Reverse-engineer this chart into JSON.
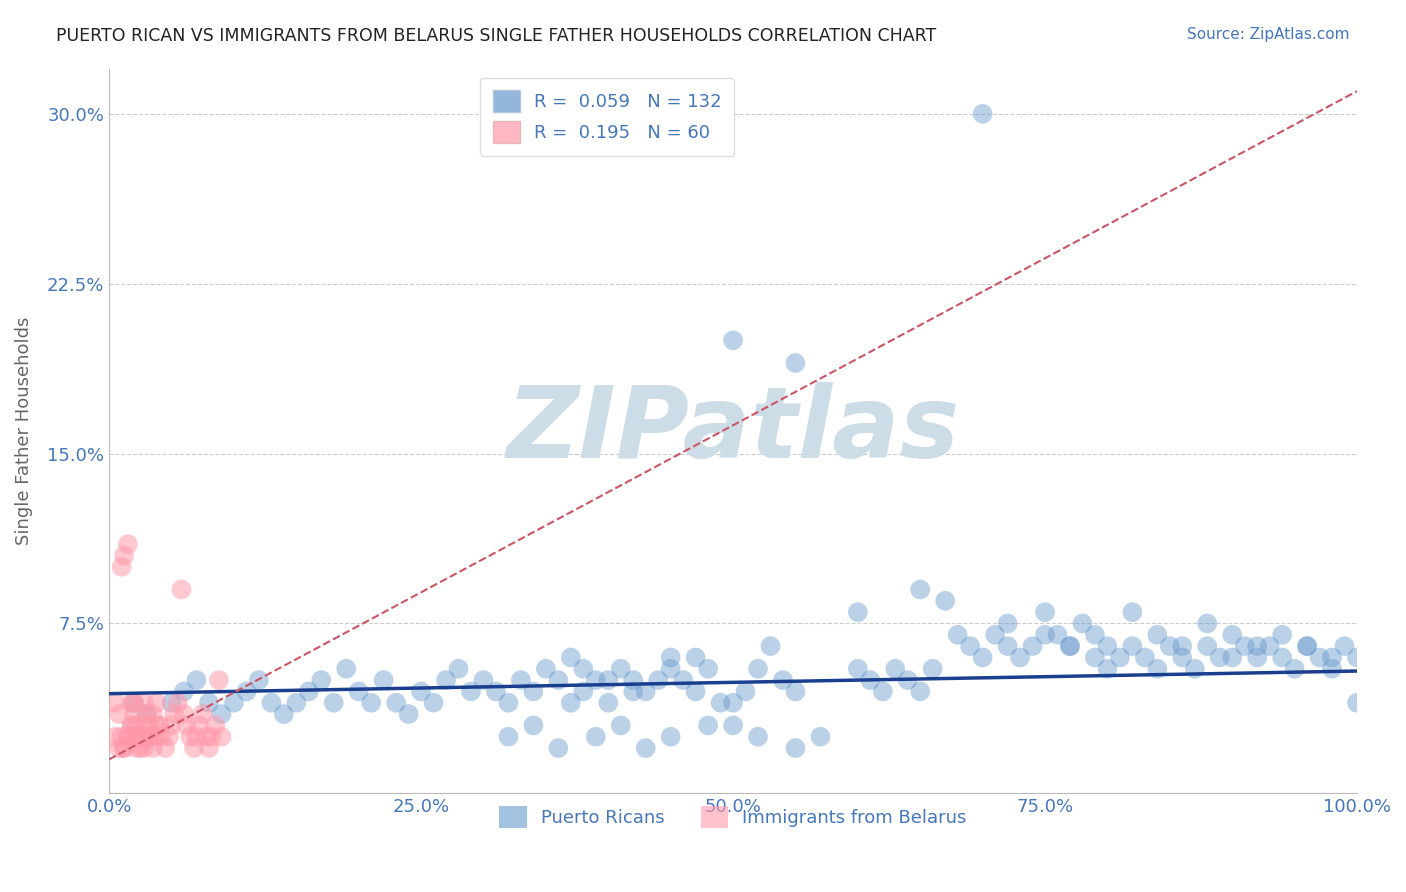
{
  "title": "PUERTO RICAN VS IMMIGRANTS FROM BELARUS SINGLE FATHER HOUSEHOLDS CORRELATION CHART",
  "source": "Source: ZipAtlas.com",
  "ylabel": "Single Father Households",
  "xlim": [
    0.0,
    1.0
  ],
  "ylim": [
    0.0,
    0.32
  ],
  "yticks": [
    0.0,
    0.075,
    0.15,
    0.225,
    0.3
  ],
  "ytick_labels": [
    "",
    "7.5%",
    "15.0%",
    "22.5%",
    "30.0%"
  ],
  "xticks": [
    0.0,
    0.25,
    0.5,
    0.75,
    1.0
  ],
  "xtick_labels": [
    "0.0%",
    "25.0%",
    "50.0%",
    "75.0%",
    "100.0%"
  ],
  "blue_R": 0.059,
  "blue_N": 132,
  "pink_R": 0.195,
  "pink_N": 60,
  "blue_color": "#6699cc",
  "pink_color": "#ff99aa",
  "blue_line_color": "#1a3f8f",
  "pink_line_color": "#cc5566",
  "watermark": "ZIPatlas",
  "watermark_color": "#ccdde8",
  "title_color": "#222222",
  "axis_color": "#4477bb",
  "grid_color": "#cccccc",
  "blue_scatter_x": [
    0.02,
    0.03,
    0.05,
    0.06,
    0.07,
    0.08,
    0.09,
    0.1,
    0.11,
    0.12,
    0.13,
    0.14,
    0.15,
    0.16,
    0.17,
    0.18,
    0.19,
    0.2,
    0.21,
    0.22,
    0.23,
    0.24,
    0.25,
    0.26,
    0.27,
    0.28,
    0.29,
    0.3,
    0.31,
    0.32,
    0.33,
    0.34,
    0.35,
    0.36,
    0.37,
    0.38,
    0.39,
    0.4,
    0.41,
    0.42,
    0.43,
    0.44,
    0.45,
    0.46,
    0.47,
    0.48,
    0.49,
    0.5,
    0.51,
    0.52,
    0.53,
    0.54,
    0.55,
    0.37,
    0.38,
    0.4,
    0.42,
    0.45,
    0.47,
    0.5,
    0.55,
    0.6,
    0.65,
    0.67,
    0.7,
    0.72,
    0.75,
    0.77,
    0.79,
    0.8,
    0.82,
    0.84,
    0.86,
    0.88,
    0.9,
    0.92,
    0.94,
    0.96,
    0.98,
    1.0,
    0.6,
    0.61,
    0.62,
    0.63,
    0.64,
    0.65,
    0.66,
    0.68,
    0.69,
    0.7,
    0.71,
    0.72,
    0.73,
    0.74,
    0.75,
    0.76,
    0.77,
    0.78,
    0.79,
    0.8,
    0.81,
    0.82,
    0.83,
    0.84,
    0.85,
    0.86,
    0.87,
    0.88,
    0.89,
    0.9,
    0.91,
    0.92,
    0.93,
    0.94,
    0.95,
    0.96,
    0.97,
    0.98,
    0.99,
    1.0,
    0.5,
    0.52,
    0.55,
    0.57,
    0.48,
    0.45,
    0.43,
    0.41,
    0.39,
    0.36,
    0.34,
    0.32
  ],
  "blue_scatter_y": [
    0.04,
    0.035,
    0.04,
    0.045,
    0.05,
    0.04,
    0.035,
    0.04,
    0.045,
    0.05,
    0.04,
    0.035,
    0.04,
    0.045,
    0.05,
    0.04,
    0.055,
    0.045,
    0.04,
    0.05,
    0.04,
    0.035,
    0.045,
    0.04,
    0.05,
    0.055,
    0.045,
    0.05,
    0.045,
    0.04,
    0.05,
    0.045,
    0.055,
    0.05,
    0.04,
    0.045,
    0.05,
    0.04,
    0.055,
    0.05,
    0.045,
    0.05,
    0.06,
    0.05,
    0.045,
    0.055,
    0.04,
    0.04,
    0.045,
    0.055,
    0.065,
    0.05,
    0.045,
    0.06,
    0.055,
    0.05,
    0.045,
    0.055,
    0.06,
    0.2,
    0.19,
    0.08,
    0.09,
    0.085,
    0.3,
    0.075,
    0.07,
    0.065,
    0.06,
    0.055,
    0.08,
    0.07,
    0.065,
    0.075,
    0.06,
    0.065,
    0.07,
    0.065,
    0.06,
    0.04,
    0.055,
    0.05,
    0.045,
    0.055,
    0.05,
    0.045,
    0.055,
    0.07,
    0.065,
    0.06,
    0.07,
    0.065,
    0.06,
    0.065,
    0.08,
    0.07,
    0.065,
    0.075,
    0.07,
    0.065,
    0.06,
    0.065,
    0.06,
    0.055,
    0.065,
    0.06,
    0.055,
    0.065,
    0.06,
    0.07,
    0.065,
    0.06,
    0.065,
    0.06,
    0.055,
    0.065,
    0.06,
    0.055,
    0.065,
    0.06,
    0.03,
    0.025,
    0.02,
    0.025,
    0.03,
    0.025,
    0.02,
    0.03,
    0.025,
    0.02,
    0.03,
    0.025
  ],
  "pink_scatter_x": [
    0.005,
    0.008,
    0.01,
    0.012,
    0.015,
    0.018,
    0.02,
    0.022,
    0.025,
    0.028,
    0.03,
    0.032,
    0.035,
    0.038,
    0.04,
    0.042,
    0.045,
    0.048,
    0.05,
    0.052,
    0.055,
    0.058,
    0.06,
    0.062,
    0.065,
    0.068,
    0.07,
    0.072,
    0.075,
    0.078,
    0.08,
    0.082,
    0.085,
    0.088,
    0.09,
    0.012,
    0.015,
    0.018,
    0.02,
    0.022,
    0.025,
    0.028,
    0.03,
    0.032,
    0.035,
    0.005,
    0.008,
    0.01,
    0.012,
    0.015,
    0.018,
    0.02,
    0.022,
    0.025,
    0.028,
    0.03,
    0.032,
    0.035,
    0.038,
    0.04
  ],
  "pink_scatter_y": [
    0.04,
    0.035,
    0.1,
    0.105,
    0.11,
    0.04,
    0.035,
    0.03,
    0.025,
    0.02,
    0.025,
    0.03,
    0.035,
    0.04,
    0.03,
    0.025,
    0.02,
    0.025,
    0.03,
    0.035,
    0.04,
    0.09,
    0.035,
    0.03,
    0.025,
    0.02,
    0.025,
    0.03,
    0.035,
    0.025,
    0.02,
    0.025,
    0.03,
    0.05,
    0.025,
    0.02,
    0.025,
    0.03,
    0.025,
    0.02,
    0.025,
    0.04,
    0.035,
    0.025,
    0.02,
    0.025,
    0.02,
    0.025,
    0.02,
    0.025,
    0.03,
    0.04,
    0.025,
    0.02,
    0.025,
    0.03,
    0.025,
    0.025,
    0.025,
    0.03
  ],
  "blue_line_x": [
    0.0,
    1.0
  ],
  "blue_line_y": [
    0.044,
    0.054
  ],
  "pink_line_x": [
    0.0,
    1.0
  ],
  "pink_line_y": [
    0.015,
    0.31
  ],
  "figsize": [
    14.06,
    8.92
  ],
  "dpi": 100
}
